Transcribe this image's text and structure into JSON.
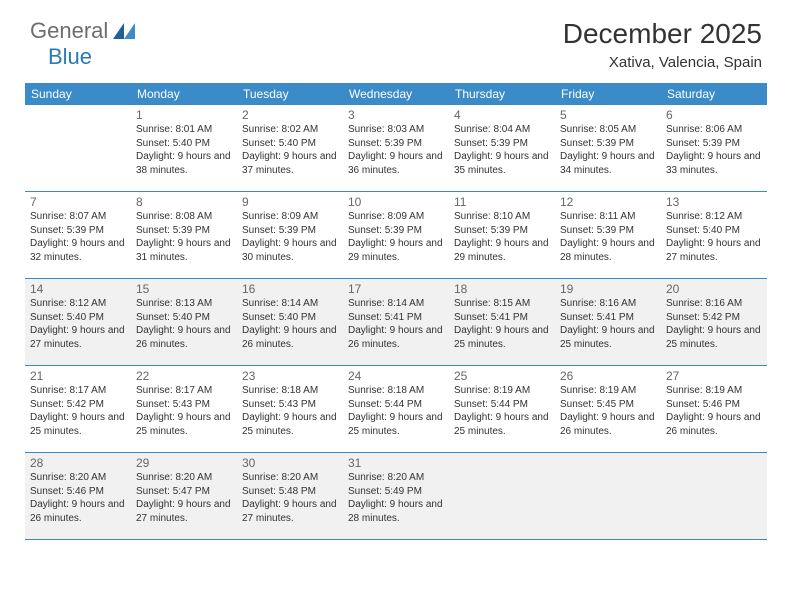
{
  "logo": {
    "text1": "General",
    "text2": "Blue"
  },
  "title": "December 2025",
  "location": "Xativa, Valencia, Spain",
  "colors": {
    "header_bg": "#3b8bc8",
    "header_text": "#ffffff",
    "shaded_bg": "#f1f1f1",
    "border": "#3b8bc8",
    "logo_grey": "#6d6d6d",
    "logo_blue": "#2a7ab8"
  },
  "day_labels": [
    "Sunday",
    "Monday",
    "Tuesday",
    "Wednesday",
    "Thursday",
    "Friday",
    "Saturday"
  ],
  "weeks": [
    [
      {
        "n": "",
        "sr": "",
        "ss": "",
        "dl": ""
      },
      {
        "n": "1",
        "sr": "Sunrise: 8:01 AM",
        "ss": "Sunset: 5:40 PM",
        "dl": "Daylight: 9 hours and 38 minutes."
      },
      {
        "n": "2",
        "sr": "Sunrise: 8:02 AM",
        "ss": "Sunset: 5:40 PM",
        "dl": "Daylight: 9 hours and 37 minutes."
      },
      {
        "n": "3",
        "sr": "Sunrise: 8:03 AM",
        "ss": "Sunset: 5:39 PM",
        "dl": "Daylight: 9 hours and 36 minutes."
      },
      {
        "n": "4",
        "sr": "Sunrise: 8:04 AM",
        "ss": "Sunset: 5:39 PM",
        "dl": "Daylight: 9 hours and 35 minutes."
      },
      {
        "n": "5",
        "sr": "Sunrise: 8:05 AM",
        "ss": "Sunset: 5:39 PM",
        "dl": "Daylight: 9 hours and 34 minutes."
      },
      {
        "n": "6",
        "sr": "Sunrise: 8:06 AM",
        "ss": "Sunset: 5:39 PM",
        "dl": "Daylight: 9 hours and 33 minutes."
      }
    ],
    [
      {
        "n": "7",
        "sr": "Sunrise: 8:07 AM",
        "ss": "Sunset: 5:39 PM",
        "dl": "Daylight: 9 hours and 32 minutes."
      },
      {
        "n": "8",
        "sr": "Sunrise: 8:08 AM",
        "ss": "Sunset: 5:39 PM",
        "dl": "Daylight: 9 hours and 31 minutes."
      },
      {
        "n": "9",
        "sr": "Sunrise: 8:09 AM",
        "ss": "Sunset: 5:39 PM",
        "dl": "Daylight: 9 hours and 30 minutes."
      },
      {
        "n": "10",
        "sr": "Sunrise: 8:09 AM",
        "ss": "Sunset: 5:39 PM",
        "dl": "Daylight: 9 hours and 29 minutes."
      },
      {
        "n": "11",
        "sr": "Sunrise: 8:10 AM",
        "ss": "Sunset: 5:39 PM",
        "dl": "Daylight: 9 hours and 29 minutes."
      },
      {
        "n": "12",
        "sr": "Sunrise: 8:11 AM",
        "ss": "Sunset: 5:39 PM",
        "dl": "Daylight: 9 hours and 28 minutes."
      },
      {
        "n": "13",
        "sr": "Sunrise: 8:12 AM",
        "ss": "Sunset: 5:40 PM",
        "dl": "Daylight: 9 hours and 27 minutes."
      }
    ],
    [
      {
        "n": "14",
        "sr": "Sunrise: 8:12 AM",
        "ss": "Sunset: 5:40 PM",
        "dl": "Daylight: 9 hours and 27 minutes."
      },
      {
        "n": "15",
        "sr": "Sunrise: 8:13 AM",
        "ss": "Sunset: 5:40 PM",
        "dl": "Daylight: 9 hours and 26 minutes."
      },
      {
        "n": "16",
        "sr": "Sunrise: 8:14 AM",
        "ss": "Sunset: 5:40 PM",
        "dl": "Daylight: 9 hours and 26 minutes."
      },
      {
        "n": "17",
        "sr": "Sunrise: 8:14 AM",
        "ss": "Sunset: 5:41 PM",
        "dl": "Daylight: 9 hours and 26 minutes."
      },
      {
        "n": "18",
        "sr": "Sunrise: 8:15 AM",
        "ss": "Sunset: 5:41 PM",
        "dl": "Daylight: 9 hours and 25 minutes."
      },
      {
        "n": "19",
        "sr": "Sunrise: 8:16 AM",
        "ss": "Sunset: 5:41 PM",
        "dl": "Daylight: 9 hours and 25 minutes."
      },
      {
        "n": "20",
        "sr": "Sunrise: 8:16 AM",
        "ss": "Sunset: 5:42 PM",
        "dl": "Daylight: 9 hours and 25 minutes."
      }
    ],
    [
      {
        "n": "21",
        "sr": "Sunrise: 8:17 AM",
        "ss": "Sunset: 5:42 PM",
        "dl": "Daylight: 9 hours and 25 minutes."
      },
      {
        "n": "22",
        "sr": "Sunrise: 8:17 AM",
        "ss": "Sunset: 5:43 PM",
        "dl": "Daylight: 9 hours and 25 minutes."
      },
      {
        "n": "23",
        "sr": "Sunrise: 8:18 AM",
        "ss": "Sunset: 5:43 PM",
        "dl": "Daylight: 9 hours and 25 minutes."
      },
      {
        "n": "24",
        "sr": "Sunrise: 8:18 AM",
        "ss": "Sunset: 5:44 PM",
        "dl": "Daylight: 9 hours and 25 minutes."
      },
      {
        "n": "25",
        "sr": "Sunrise: 8:19 AM",
        "ss": "Sunset: 5:44 PM",
        "dl": "Daylight: 9 hours and 25 minutes."
      },
      {
        "n": "26",
        "sr": "Sunrise: 8:19 AM",
        "ss": "Sunset: 5:45 PM",
        "dl": "Daylight: 9 hours and 26 minutes."
      },
      {
        "n": "27",
        "sr": "Sunrise: 8:19 AM",
        "ss": "Sunset: 5:46 PM",
        "dl": "Daylight: 9 hours and 26 minutes."
      }
    ],
    [
      {
        "n": "28",
        "sr": "Sunrise: 8:20 AM",
        "ss": "Sunset: 5:46 PM",
        "dl": "Daylight: 9 hours and 26 minutes."
      },
      {
        "n": "29",
        "sr": "Sunrise: 8:20 AM",
        "ss": "Sunset: 5:47 PM",
        "dl": "Daylight: 9 hours and 27 minutes."
      },
      {
        "n": "30",
        "sr": "Sunrise: 8:20 AM",
        "ss": "Sunset: 5:48 PM",
        "dl": "Daylight: 9 hours and 27 minutes."
      },
      {
        "n": "31",
        "sr": "Sunrise: 8:20 AM",
        "ss": "Sunset: 5:49 PM",
        "dl": "Daylight: 9 hours and 28 minutes."
      },
      {
        "n": "",
        "sr": "",
        "ss": "",
        "dl": ""
      },
      {
        "n": "",
        "sr": "",
        "ss": "",
        "dl": ""
      },
      {
        "n": "",
        "sr": "",
        "ss": "",
        "dl": ""
      }
    ]
  ],
  "shaded_rows": [
    2,
    4
  ]
}
